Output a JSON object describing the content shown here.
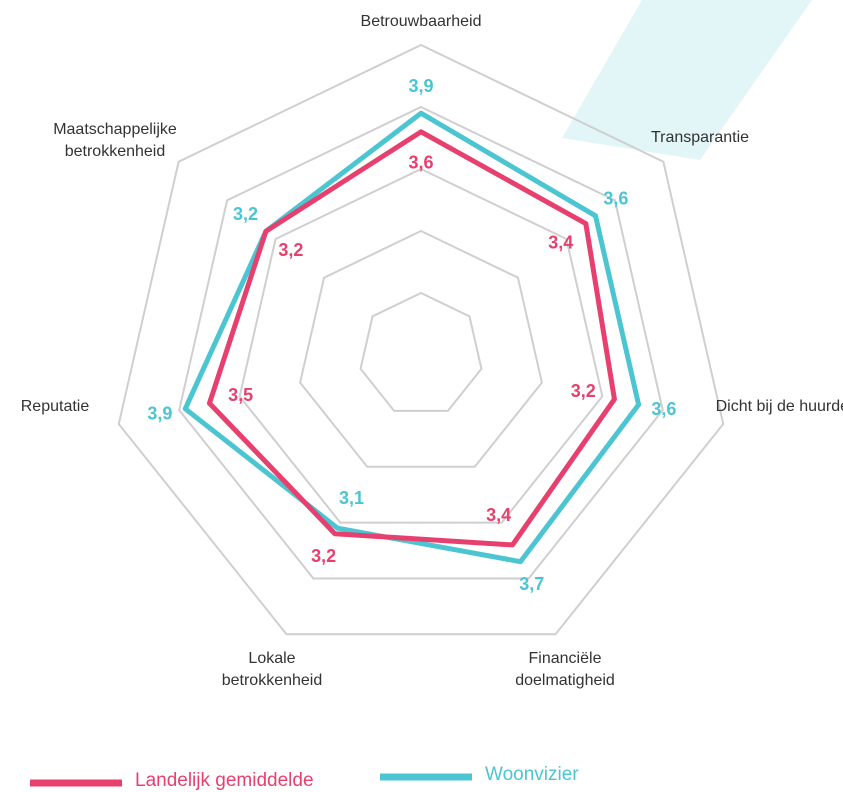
{
  "chart_data": {
    "type": "radar",
    "categories": [
      "Betrouwbaarheid",
      "Transparantie",
      "Dicht bij de huurder",
      "Financiële doelmatigheid",
      "Lokale betrokkenheid",
      "Reputatie",
      "Maatschappelijke betrokkenheid"
    ],
    "series": [
      {
        "name": "Landelijk gemiddelde",
        "color": "#e8406e",
        "values": [
          3.6,
          3.4,
          3.2,
          3.4,
          3.2,
          3.5,
          3.2
        ],
        "value_labels": [
          "3,6",
          "3,4",
          "3,2",
          "3,4",
          "3,2",
          "3,5",
          "3,2"
        ]
      },
      {
        "name": "Woonvizier",
        "color": "#4cc5d2",
        "values": [
          3.9,
          3.6,
          3.6,
          3.7,
          3.1,
          3.9,
          3.2
        ],
        "value_labels": [
          "3,9",
          "3,6",
          "3,6",
          "3,7",
          "3,1",
          "3,9",
          "3,2"
        ]
      }
    ],
    "ylim": [
      0,
      5
    ],
    "yticks": [
      1,
      2,
      3,
      4,
      5
    ],
    "grid": true,
    "legend": "bottom"
  }
}
